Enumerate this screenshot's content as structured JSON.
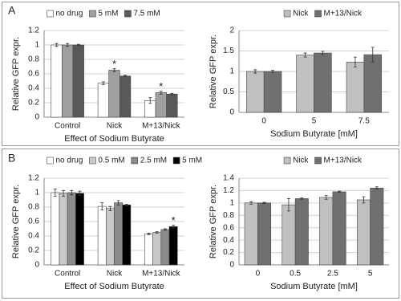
{
  "panel_labels": [
    "A",
    "B"
  ],
  "chart_data": [
    {
      "type": "bar",
      "xlabel": "Effect of Sodium Butyrate",
      "ylabel": "Relative GFP expr.",
      "categories": [
        "Control",
        "Nick",
        "M+13/Nick"
      ],
      "series": [
        {
          "name": "no drug",
          "color": "#ffffff",
          "values": [
            1.0,
            0.47,
            0.23
          ],
          "errors": [
            0.02,
            0.02,
            0.04
          ]
        },
        {
          "name": "5 mM",
          "color": "#a0a0a0",
          "values": [
            1.0,
            0.65,
            0.34
          ],
          "errors": [
            0.02,
            0.02,
            0.02
          ]
        },
        {
          "name": "7.5 mM",
          "color": "#595959",
          "values": [
            1.0,
            0.57,
            0.32
          ],
          "errors": [
            0.01,
            0.01,
            0.01
          ]
        }
      ],
      "annotations": [
        {
          "text": "*",
          "category": "Nick",
          "series": "5 mM"
        },
        {
          "text": "*",
          "category": "M+13/Nick",
          "series": "5 mM"
        }
      ],
      "ylim": [
        0,
        1.2
      ],
      "yticks": [
        0,
        0.2,
        0.4,
        0.6,
        0.8,
        1,
        1.2
      ],
      "grid": true,
      "legend": "top"
    },
    {
      "type": "bar",
      "xlabel": "Sodium Butyrate [mM]",
      "ylabel": "Relative GFP expr.",
      "categories": [
        "0",
        "5",
        "7.5"
      ],
      "series": [
        {
          "name": "Nick",
          "color": "#c0c0c0",
          "values": [
            1.0,
            1.4,
            1.23
          ],
          "errors": [
            0.04,
            0.05,
            0.12
          ]
        },
        {
          "name": "M+13/Nick",
          "color": "#707070",
          "values": [
            1.0,
            1.45,
            1.41
          ],
          "errors": [
            0.03,
            0.04,
            0.18
          ]
        }
      ],
      "ylim": [
        0,
        2
      ],
      "yticks": [
        0,
        0.5,
        1,
        1.5,
        2
      ],
      "grid": true,
      "legend": "top"
    },
    {
      "type": "bar",
      "xlabel": "Effect of Sodium Butyrate",
      "ylabel": "Relative GFP expr.",
      "categories": [
        "Control",
        "Nick",
        "M+13/Nick"
      ],
      "series": [
        {
          "name": "no drug",
          "color": "#ffffff",
          "values": [
            1.0,
            0.81,
            0.43
          ],
          "errors": [
            0.05,
            0.05,
            0.01
          ]
        },
        {
          "name": "0.5 mM",
          "color": "#c8c8c8",
          "values": [
            0.99,
            0.78,
            0.45
          ],
          "errors": [
            0.04,
            0.03,
            0.01
          ]
        },
        {
          "name": "2.5 mM",
          "color": "#8c8c8c",
          "values": [
            1.0,
            0.86,
            0.49
          ],
          "errors": [
            0.03,
            0.03,
            0.01
          ]
        },
        {
          "name": "5 mM",
          "color": "#000000",
          "values": [
            0.99,
            0.83,
            0.53
          ],
          "errors": [
            0.03,
            0.01,
            0.02
          ]
        }
      ],
      "annotations": [
        {
          "text": "*",
          "category": "M+13/Nick",
          "series": "5 mM"
        }
      ],
      "ylim": [
        0,
        1.2
      ],
      "yticks": [
        0,
        0.2,
        0.4,
        0.6,
        0.8,
        1,
        1.2
      ],
      "grid": true,
      "legend": "top"
    },
    {
      "type": "bar",
      "xlabel": "Sodium Butyrate [mM]",
      "ylabel": "Relative GFP expr.",
      "categories": [
        "0",
        "0.5",
        "2.5",
        "5"
      ],
      "series": [
        {
          "name": "Nick",
          "color": "#c0c0c0",
          "values": [
            1.0,
            0.97,
            1.09,
            1.05
          ],
          "errors": [
            0.02,
            0.1,
            0.03,
            0.05
          ]
        },
        {
          "name": "M+13/Nick",
          "color": "#707070",
          "values": [
            1.0,
            1.07,
            1.18,
            1.24
          ],
          "errors": [
            0.01,
            0.01,
            0.01,
            0.02
          ]
        }
      ],
      "ylim": [
        0,
        1.4
      ],
      "yticks": [
        0,
        0.2,
        0.4,
        0.6,
        0.8,
        1,
        1.2,
        1.4
      ],
      "grid": true,
      "legend": "top"
    }
  ]
}
